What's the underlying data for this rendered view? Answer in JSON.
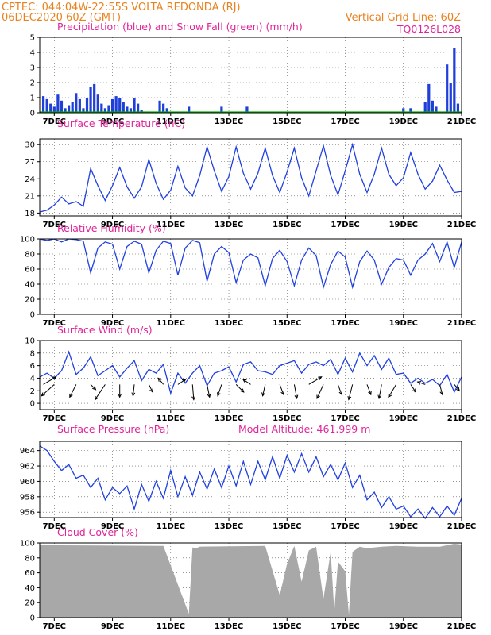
{
  "header": {
    "line1_left": "CPTEC:   044:04W-22:55S   VOLTA REDONDA (RJ)",
    "line2_left": "06DEC2020 60Z (GMT)",
    "line2_right": "Vertical Grid Line: 60Z",
    "code": "TQ0126L028"
  },
  "colors": {
    "header": "#e8821e",
    "title": "#e0249a",
    "precip": "#1f3fd8",
    "snow": "#00b000",
    "line": "#2040e0",
    "cloud": "#a8a8a8"
  },
  "x_axis": {
    "tick_labels": [
      "7DEC",
      "9DEC",
      "11DEC",
      "13DEC",
      "15DEC",
      "17DEC",
      "19DEC",
      "21DEC"
    ],
    "start": "2020-12-06T12:00Z",
    "end": "2020-12-21T00:00Z"
  },
  "chart_data": [
    {
      "type": "bar",
      "title": "Precipitation (blue) and Snow Fall (green) (mm/h)",
      "ylim": [
        0,
        5
      ],
      "yticks": [
        0,
        1,
        2,
        3,
        4,
        5
      ],
      "series": [
        {
          "name": "Precipitation",
          "color": "#1f3fd8",
          "time": [
            "2020-12-06T15:00Z",
            "2020-12-06T18:00Z",
            "2020-12-06T21:00Z",
            "2020-12-07T00:00Z",
            "2020-12-07T03:00Z",
            "2020-12-07T06:00Z",
            "2020-12-07T09:00Z",
            "2020-12-07T12:00Z",
            "2020-12-07T15:00Z",
            "2020-12-07T18:00Z",
            "2020-12-07T21:00Z",
            "2020-12-08T00:00Z",
            "2020-12-08T03:00Z",
            "2020-12-08T06:00Z",
            "2020-12-08T09:00Z",
            "2020-12-08T12:00Z",
            "2020-12-08T15:00Z",
            "2020-12-08T18:00Z",
            "2020-12-08T21:00Z",
            "2020-12-09T00:00Z",
            "2020-12-09T03:00Z",
            "2020-12-09T06:00Z",
            "2020-12-09T09:00Z",
            "2020-12-09T12:00Z",
            "2020-12-09T15:00Z",
            "2020-12-09T18:00Z",
            "2020-12-09T21:00Z",
            "2020-12-10T00:00Z",
            "2020-12-10T15:00Z",
            "2020-12-10T18:00Z",
            "2020-12-10T21:00Z",
            "2020-12-11T15:00Z",
            "2020-12-12T18:00Z",
            "2020-12-13T15:00Z",
            "2020-12-19T00:00Z",
            "2020-12-19T06:00Z",
            "2020-12-19T18:00Z",
            "2020-12-19T21:00Z",
            "2020-12-20T00:00Z",
            "2020-12-20T03:00Z",
            "2020-12-20T12:00Z",
            "2020-12-20T15:00Z",
            "2020-12-20T18:00Z",
            "2020-12-20T21:00Z"
          ],
          "values": [
            1.1,
            0.9,
            0.6,
            0.4,
            1.2,
            0.8,
            0.3,
            0.5,
            0.7,
            1.3,
            0.9,
            0.3,
            1.0,
            1.7,
            1.9,
            1.2,
            0.6,
            0.3,
            0.5,
            0.9,
            1.1,
            1.0,
            0.7,
            0.4,
            0.3,
            1.0,
            0.6,
            0.2,
            0.8,
            0.6,
            0.3,
            0.4,
            0.4,
            0.4,
            0.3,
            0.3,
            0.7,
            1.9,
            0.8,
            0.4,
            3.2,
            2.0,
            4.3,
            0.6
          ]
        },
        {
          "name": "Snow Fall",
          "color": "#00b000",
          "values": []
        }
      ]
    },
    {
      "type": "line",
      "title": "Surface Temperature (nC)",
      "ylim": [
        17.5,
        31
      ],
      "yticks": [
        18,
        21,
        24,
        27,
        30
      ],
      "x": [
        "2020-12-06T12:00Z",
        "2020-12-06T18:00Z",
        "2020-12-07T00:00Z",
        "2020-12-07T06:00Z",
        "2020-12-07T12:00Z",
        "2020-12-07T18:00Z",
        "2020-12-08T00:00Z",
        "2020-12-08T06:00Z",
        "2020-12-08T12:00Z",
        "2020-12-08T18:00Z",
        "2020-12-09T00:00Z",
        "2020-12-09T06:00Z",
        "2020-12-09T12:00Z",
        "2020-12-09T18:00Z",
        "2020-12-10T00:00Z",
        "2020-12-10T06:00Z",
        "2020-12-10T12:00Z",
        "2020-12-10T18:00Z",
        "2020-12-11T00:00Z",
        "2020-12-11T06:00Z",
        "2020-12-11T12:00Z",
        "2020-12-11T18:00Z",
        "2020-12-12T00:00Z",
        "2020-12-12T06:00Z",
        "2020-12-12T12:00Z",
        "2020-12-12T18:00Z",
        "2020-12-13T00:00Z",
        "2020-12-13T06:00Z",
        "2020-12-13T12:00Z",
        "2020-12-13T18:00Z",
        "2020-12-14T00:00Z",
        "2020-12-14T06:00Z",
        "2020-12-14T12:00Z",
        "2020-12-14T18:00Z",
        "2020-12-15T00:00Z",
        "2020-12-15T06:00Z",
        "2020-12-15T12:00Z",
        "2020-12-15T18:00Z",
        "2020-12-16T00:00Z",
        "2020-12-16T06:00Z",
        "2020-12-16T12:00Z",
        "2020-12-16T18:00Z",
        "2020-12-17T00:00Z",
        "2020-12-17T06:00Z",
        "2020-12-17T12:00Z",
        "2020-12-17T18:00Z",
        "2020-12-18T00:00Z",
        "2020-12-18T06:00Z",
        "2020-12-18T12:00Z",
        "2020-12-18T18:00Z",
        "2020-12-19T00:00Z",
        "2020-12-19T06:00Z",
        "2020-12-19T12:00Z",
        "2020-12-19T18:00Z",
        "2020-12-20T00:00Z",
        "2020-12-20T06:00Z",
        "2020-12-20T12:00Z",
        "2020-12-20T18:00Z",
        "2020-12-21T00:00Z"
      ],
      "values": [
        18.2,
        18.5,
        19.4,
        20.8,
        19.6,
        20.0,
        19.2,
        25.8,
        22.8,
        20.2,
        22.8,
        26.0,
        22.6,
        20.6,
        22.6,
        27.4,
        23.2,
        20.4,
        22.0,
        26.2,
        22.4,
        21.0,
        24.6,
        29.6,
        25.4,
        21.8,
        24.4,
        29.6,
        25.0,
        22.2,
        25.0,
        29.4,
        24.6,
        21.6,
        25.2,
        29.4,
        24.2,
        21.0,
        25.4,
        29.8,
        24.6,
        21.2,
        25.4,
        30.0,
        24.8,
        21.6,
        24.8,
        29.4,
        24.8,
        22.8,
        24.2,
        28.6,
        24.8,
        22.2,
        23.6,
        26.4,
        23.8,
        21.6,
        21.8
      ]
    },
    {
      "type": "line",
      "title": "Relative Humidity (%)",
      "ylim": [
        0,
        100
      ],
      "yticks": [
        0,
        20,
        40,
        60,
        80,
        100
      ],
      "x": [
        "2020-12-06T12:00Z",
        "2020-12-06T18:00Z",
        "2020-12-07T00:00Z",
        "2020-12-07T06:00Z",
        "2020-12-07T12:00Z",
        "2020-12-07T18:00Z",
        "2020-12-08T00:00Z",
        "2020-12-08T06:00Z",
        "2020-12-08T12:00Z",
        "2020-12-08T18:00Z",
        "2020-12-09T00:00Z",
        "2020-12-09T06:00Z",
        "2020-12-09T12:00Z",
        "2020-12-09T18:00Z",
        "2020-12-10T00:00Z",
        "2020-12-10T06:00Z",
        "2020-12-10T12:00Z",
        "2020-12-10T18:00Z",
        "2020-12-11T00:00Z",
        "2020-12-11T06:00Z",
        "2020-12-11T12:00Z",
        "2020-12-11T18:00Z",
        "2020-12-12T00:00Z",
        "2020-12-12T06:00Z",
        "2020-12-12T12:00Z",
        "2020-12-12T18:00Z",
        "2020-12-13T00:00Z",
        "2020-12-13T06:00Z",
        "2020-12-13T12:00Z",
        "2020-12-13T18:00Z",
        "2020-12-14T00:00Z",
        "2020-12-14T06:00Z",
        "2020-12-14T12:00Z",
        "2020-12-14T18:00Z",
        "2020-12-15T00:00Z",
        "2020-12-15T06:00Z",
        "2020-12-15T12:00Z",
        "2020-12-15T18:00Z",
        "2020-12-16T00:00Z",
        "2020-12-16T06:00Z",
        "2020-12-16T12:00Z",
        "2020-12-16T18:00Z",
        "2020-12-17T00:00Z",
        "2020-12-17T06:00Z",
        "2020-12-17T12:00Z",
        "2020-12-17T18:00Z",
        "2020-12-18T00:00Z",
        "2020-12-18T06:00Z",
        "2020-12-18T12:00Z",
        "2020-12-18T18:00Z",
        "2020-12-19T00:00Z",
        "2020-12-19T06:00Z",
        "2020-12-19T12:00Z",
        "2020-12-19T18:00Z",
        "2020-12-20T00:00Z",
        "2020-12-20T06:00Z",
        "2020-12-20T12:00Z",
        "2020-12-20T18:00Z",
        "2020-12-21T00:00Z"
      ],
      "values": [
        100,
        98,
        100,
        96,
        100,
        99,
        97,
        55,
        88,
        96,
        93,
        60,
        90,
        97,
        93,
        55,
        85,
        97,
        94,
        52,
        88,
        98,
        95,
        44,
        80,
        90,
        82,
        42,
        72,
        80,
        75,
        38,
        74,
        85,
        70,
        38,
        72,
        88,
        78,
        36,
        66,
        84,
        76,
        36,
        70,
        84,
        72,
        40,
        62,
        74,
        72,
        52,
        72,
        80,
        94,
        70,
        96,
        62,
        96
      ]
    },
    {
      "type": "line",
      "title": "Surface Wind (m/s)",
      "ylim": [
        -1,
        10
      ],
      "yticks": [
        0,
        2,
        4,
        6,
        8,
        10
      ],
      "x": [
        "2020-12-06T12:00Z",
        "2020-12-06T18:00Z",
        "2020-12-07T00:00Z",
        "2020-12-07T06:00Z",
        "2020-12-07T12:00Z",
        "2020-12-07T18:00Z",
        "2020-12-08T00:00Z",
        "2020-12-08T06:00Z",
        "2020-12-08T12:00Z",
        "2020-12-08T18:00Z",
        "2020-12-09T00:00Z",
        "2020-12-09T06:00Z",
        "2020-12-09T12:00Z",
        "2020-12-09T18:00Z",
        "2020-12-10T00:00Z",
        "2020-12-10T06:00Z",
        "2020-12-10T12:00Z",
        "2020-12-10T18:00Z",
        "2020-12-11T00:00Z",
        "2020-12-11T06:00Z",
        "2020-12-11T12:00Z",
        "2020-12-11T18:00Z",
        "2020-12-12T00:00Z",
        "2020-12-12T06:00Z",
        "2020-12-12T12:00Z",
        "2020-12-12T18:00Z",
        "2020-12-13T00:00Z",
        "2020-12-13T06:00Z",
        "2020-12-13T12:00Z",
        "2020-12-13T18:00Z",
        "2020-12-14T00:00Z",
        "2020-12-14T06:00Z",
        "2020-12-14T12:00Z",
        "2020-12-14T18:00Z",
        "2020-12-15T00:00Z",
        "2020-12-15T06:00Z",
        "2020-12-15T12:00Z",
        "2020-12-15T18:00Z",
        "2020-12-16T00:00Z",
        "2020-12-16T06:00Z",
        "2020-12-16T12:00Z",
        "2020-12-16T18:00Z",
        "2020-12-17T00:00Z",
        "2020-12-17T06:00Z",
        "2020-12-17T12:00Z",
        "2020-12-17T18:00Z",
        "2020-12-18T00:00Z",
        "2020-12-18T06:00Z",
        "2020-12-18T12:00Z",
        "2020-12-18T18:00Z",
        "2020-12-19T00:00Z",
        "2020-12-19T06:00Z",
        "2020-12-19T12:00Z",
        "2020-12-19T18:00Z",
        "2020-12-20T00:00Z",
        "2020-12-20T06:00Z",
        "2020-12-20T12:00Z",
        "2020-12-20T18:00Z",
        "2020-12-21T00:00Z"
      ],
      "values": [
        4.2,
        4.8,
        4.0,
        5.2,
        8.2,
        4.6,
        5.6,
        7.4,
        4.4,
        5.2,
        6.0,
        4.2,
        5.6,
        6.8,
        3.6,
        5.4,
        4.8,
        6.2,
        1.6,
        4.8,
        3.2,
        4.8,
        6.0,
        2.8,
        4.8,
        5.2,
        5.8,
        3.4,
        6.2,
        6.6,
        5.2,
        5.0,
        4.6,
        6.0,
        6.4,
        6.8,
        4.8,
        6.2,
        6.6,
        6.0,
        7.0,
        4.6,
        7.2,
        5.0,
        8.0,
        6.0,
        7.6,
        5.4,
        7.2,
        4.6,
        4.8,
        3.2,
        4.0,
        3.2,
        3.8,
        2.8,
        4.6,
        1.8,
        4.2
      ],
      "wind_arrows": [
        {
          "time": "2020-12-06T15:00Z",
          "u": 1.0,
          "v": 0.6
        },
        {
          "time": "2020-12-07T00:00Z",
          "u": -1.0,
          "v": -0.9
        },
        {
          "time": "2020-12-07T18:00Z",
          "u": -0.5,
          "v": -1.0
        },
        {
          "time": "2020-12-08T06:00Z",
          "u": 0.4,
          "v": -0.4
        },
        {
          "time": "2020-12-08T18:00Z",
          "u": -0.8,
          "v": -1.2
        },
        {
          "time": "2020-12-09T06:00Z",
          "u": 0.0,
          "v": -1.0
        },
        {
          "time": "2020-12-09T18:00Z",
          "u": -0.1,
          "v": -0.9
        },
        {
          "time": "2020-12-10T06:00Z",
          "u": 0.3,
          "v": -0.6
        },
        {
          "time": "2020-12-10T18:00Z",
          "u": -0.4,
          "v": 0.5
        },
        {
          "time": "2020-12-11T06:00Z",
          "u": 0.6,
          "v": 0.4
        },
        {
          "time": "2020-12-11T18:00Z",
          "u": 0.1,
          "v": -1.2
        },
        {
          "time": "2020-12-12T06:00Z",
          "u": 0.2,
          "v": -1.0
        },
        {
          "time": "2020-12-12T18:00Z",
          "u": -0.3,
          "v": -0.9
        },
        {
          "time": "2020-12-13T06:00Z",
          "u": 0.6,
          "v": -0.6
        },
        {
          "time": "2020-12-13T18:00Z",
          "u": -0.6,
          "v": 0.4
        },
        {
          "time": "2020-12-14T06:00Z",
          "u": -0.2,
          "v": -0.9
        },
        {
          "time": "2020-12-14T18:00Z",
          "u": 0.3,
          "v": -0.8
        },
        {
          "time": "2020-12-15T06:00Z",
          "u": 0.2,
          "v": -1.1
        },
        {
          "time": "2020-12-15T18:00Z",
          "u": 1.0,
          "v": 0.6
        },
        {
          "time": "2020-12-16T06:00Z",
          "u": -0.5,
          "v": -1.1
        },
        {
          "time": "2020-12-16T18:00Z",
          "u": 0.3,
          "v": -0.8
        },
        {
          "time": "2020-12-17T06:00Z",
          "u": -0.3,
          "v": -1.2
        },
        {
          "time": "2020-12-17T18:00Z",
          "u": 0.3,
          "v": -0.8
        },
        {
          "time": "2020-12-18T06:00Z",
          "u": -0.2,
          "v": -1.1
        },
        {
          "time": "2020-12-18T18:00Z",
          "u": -0.6,
          "v": -1.0
        },
        {
          "time": "2020-12-19T06:00Z",
          "u": 0.4,
          "v": -0.6
        },
        {
          "time": "2020-12-19T18:00Z",
          "u": -0.6,
          "v": 0.2
        },
        {
          "time": "2020-12-20T06:00Z",
          "u": 0.2,
          "v": -0.8
        },
        {
          "time": "2020-12-20T18:00Z",
          "u": 0.4,
          "v": -0.5
        }
      ]
    },
    {
      "type": "line",
      "title": "Surface Pressure (hPa)",
      "annotation": "Model Altitude:   461.999  m",
      "ylim": [
        955.3,
        965.2
      ],
      "yticks": [
        956,
        958,
        960,
        962,
        964
      ],
      "x": [
        "2020-12-06T12:00Z",
        "2020-12-06T18:00Z",
        "2020-12-07T00:00Z",
        "2020-12-07T06:00Z",
        "2020-12-07T12:00Z",
        "2020-12-07T18:00Z",
        "2020-12-08T00:00Z",
        "2020-12-08T06:00Z",
        "2020-12-08T12:00Z",
        "2020-12-08T18:00Z",
        "2020-12-09T00:00Z",
        "2020-12-09T06:00Z",
        "2020-12-09T12:00Z",
        "2020-12-09T18:00Z",
        "2020-12-10T00:00Z",
        "2020-12-10T06:00Z",
        "2020-12-10T12:00Z",
        "2020-12-10T18:00Z",
        "2020-12-11T00:00Z",
        "2020-12-11T06:00Z",
        "2020-12-11T12:00Z",
        "2020-12-11T18:00Z",
        "2020-12-12T00:00Z",
        "2020-12-12T06:00Z",
        "2020-12-12T12:00Z",
        "2020-12-12T18:00Z",
        "2020-12-13T00:00Z",
        "2020-12-13T06:00Z",
        "2020-12-13T12:00Z",
        "2020-12-13T18:00Z",
        "2020-12-14T00:00Z",
        "2020-12-14T06:00Z",
        "2020-12-14T12:00Z",
        "2020-12-14T18:00Z",
        "2020-12-15T00:00Z",
        "2020-12-15T06:00Z",
        "2020-12-15T12:00Z",
        "2020-12-15T18:00Z",
        "2020-12-16T00:00Z",
        "2020-12-16T06:00Z",
        "2020-12-16T12:00Z",
        "2020-12-16T18:00Z",
        "2020-12-17T00:00Z",
        "2020-12-17T06:00Z",
        "2020-12-17T12:00Z",
        "2020-12-17T18:00Z",
        "2020-12-18T00:00Z",
        "2020-12-18T06:00Z",
        "2020-12-18T12:00Z",
        "2020-12-18T18:00Z",
        "2020-12-19T00:00Z",
        "2020-12-19T06:00Z",
        "2020-12-19T12:00Z",
        "2020-12-19T18:00Z",
        "2020-12-20T00:00Z",
        "2020-12-20T06:00Z",
        "2020-12-20T12:00Z",
        "2020-12-20T18:00Z",
        "2020-12-21T00:00Z"
      ],
      "values": [
        964.6,
        964.0,
        962.6,
        961.4,
        962.2,
        960.4,
        960.8,
        959.2,
        960.4,
        957.6,
        959.2,
        958.4,
        959.4,
        956.4,
        959.6,
        957.4,
        960.0,
        957.8,
        961.4,
        958.0,
        960.6,
        958.2,
        961.2,
        959.0,
        961.6,
        959.2,
        962.0,
        959.4,
        962.6,
        959.6,
        962.6,
        960.2,
        963.2,
        960.4,
        963.4,
        961.2,
        963.6,
        961.2,
        963.2,
        960.6,
        962.2,
        960.2,
        962.4,
        959.2,
        960.8,
        957.6,
        958.6,
        956.6,
        958.0,
        956.4,
        956.8,
        955.4,
        956.4,
        955.2,
        956.6,
        955.4,
        956.8,
        955.6,
        957.8
      ]
    },
    {
      "type": "area",
      "title": "Cloud Cover (%)",
      "ylim": [
        0,
        100
      ],
      "yticks": [
        0,
        20,
        40,
        60,
        80,
        100
      ],
      "x": [
        "2020-12-06T12:00Z",
        "2020-12-10T18:00Z",
        "2020-12-11T15:00Z",
        "2020-12-11T18:00Z",
        "2020-12-11T21:00Z",
        "2020-12-12T00:00Z",
        "2020-12-14T06:00Z",
        "2020-12-14T18:00Z",
        "2020-12-15T00:00Z",
        "2020-12-15T06:00Z",
        "2020-12-15T12:00Z",
        "2020-12-15T18:00Z",
        "2020-12-16T00:00Z",
        "2020-12-16T06:00Z",
        "2020-12-16T12:00Z",
        "2020-12-16T15:00Z",
        "2020-12-16T18:00Z",
        "2020-12-17T00:00Z",
        "2020-12-17T03:00Z",
        "2020-12-17T06:00Z",
        "2020-12-17T12:00Z",
        "2020-12-17T18:00Z",
        "2020-12-18T06:00Z",
        "2020-12-18T18:00Z",
        "2020-12-19T12:00Z",
        "2020-12-20T06:00Z",
        "2020-12-20T18:00Z",
        "2020-12-21T00:00Z"
      ],
      "values": [
        97,
        96,
        5,
        94,
        93,
        95,
        96,
        30,
        72,
        96,
        48,
        90,
        95,
        25,
        88,
        8,
        75,
        62,
        4,
        88,
        95,
        93,
        95,
        96,
        95,
        95,
        99,
        98
      ]
    }
  ]
}
